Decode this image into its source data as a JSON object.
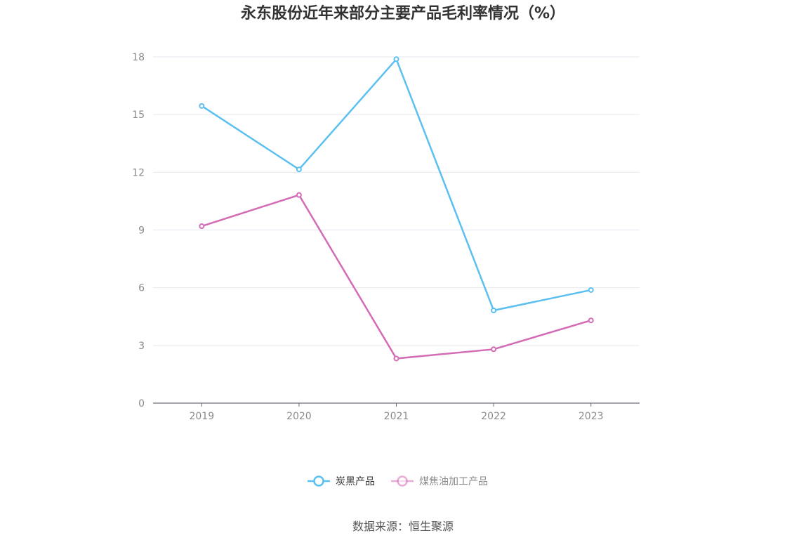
{
  "chart_data": {
    "type": "line",
    "title": "永东股份近年来部分主要产品毛利率情况（%）",
    "xlabel": "",
    "ylabel": "",
    "categories": [
      "2019",
      "2020",
      "2021",
      "2022",
      "2023"
    ],
    "ylim": [
      0,
      18
    ],
    "yticks": [
      0,
      3,
      6,
      9,
      12,
      15,
      18
    ],
    "grid": true,
    "legend_position": "bottom",
    "series": [
      {
        "name": "炭黑产品",
        "color": "#5bc0f0",
        "values": [
          15.45,
          12.15,
          17.88,
          4.82,
          5.88
        ]
      },
      {
        "name": "煤焦油加工产品",
        "color": "#d36bb5",
        "values": [
          9.2,
          10.82,
          2.32,
          2.8,
          4.3
        ]
      }
    ]
  },
  "footer": {
    "source": "数据来源：恒生聚源"
  },
  "colors": {
    "grid": "#e6e9ef",
    "axis": "#6e7079",
    "tick_text": "#8a8a8a"
  }
}
